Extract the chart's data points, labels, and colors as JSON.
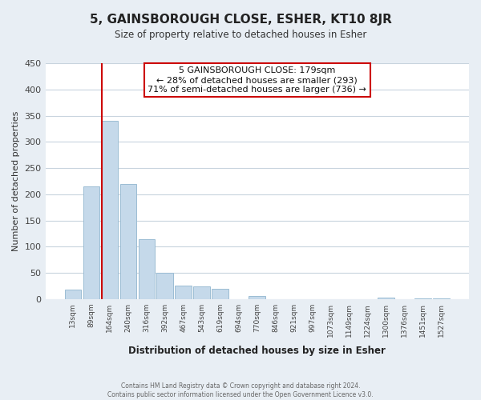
{
  "title": "5, GAINSBOROUGH CLOSE, ESHER, KT10 8JR",
  "subtitle": "Size of property relative to detached houses in Esher",
  "xlabel": "Distribution of detached houses by size in Esher",
  "ylabel": "Number of detached properties",
  "bin_labels": [
    "13sqm",
    "89sqm",
    "164sqm",
    "240sqm",
    "316sqm",
    "392sqm",
    "467sqm",
    "543sqm",
    "619sqm",
    "694sqm",
    "770sqm",
    "846sqm",
    "921sqm",
    "997sqm",
    "1073sqm",
    "1149sqm",
    "1224sqm",
    "1300sqm",
    "1376sqm",
    "1451sqm",
    "1527sqm"
  ],
  "bar_values": [
    18,
    215,
    340,
    220,
    115,
    50,
    26,
    24,
    19,
    0,
    6,
    0,
    0,
    0,
    0,
    0,
    0,
    3,
    0,
    2,
    2
  ],
  "bar_color": "#c5d9ea",
  "bar_edge_color": "#9bbdd4",
  "vline_x_index": 2,
  "vline_color": "#cc0000",
  "annotation_line1": "5 GAINSBOROUGH CLOSE: 179sqm",
  "annotation_line2": "← 28% of detached houses are smaller (293)",
  "annotation_line3": "71% of semi-detached houses are larger (736) →",
  "ylim": [
    0,
    450
  ],
  "yticks": [
    0,
    50,
    100,
    150,
    200,
    250,
    300,
    350,
    400,
    450
  ],
  "footer_text": "Contains HM Land Registry data © Crown copyright and database right 2024.\nContains public sector information licensed under the Open Government Licence v3.0.",
  "bg_color": "#e8eef4",
  "plot_bg_color": "#ffffff",
  "grid_color": "#c8d4de"
}
